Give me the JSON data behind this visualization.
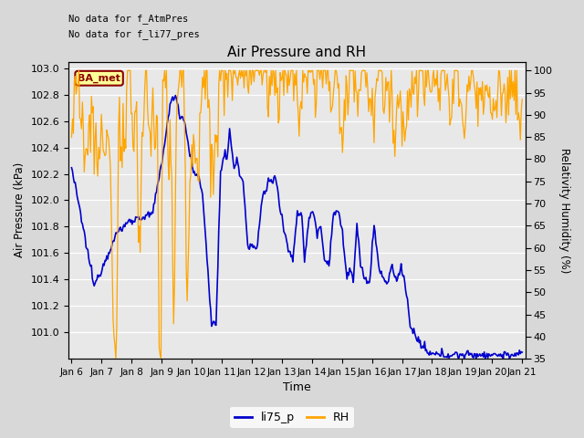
{
  "title": "Air Pressure and RH",
  "xlabel": "Time",
  "ylabel_left": "Air Pressure (kPa)",
  "ylabel_right": "Relativity Humidity (%)",
  "annotation_line1": "No data for f_AtmPres",
  "annotation_line2": "No data for f_li77_pres",
  "ba_met_label": "BA_met",
  "legend_labels": [
    "li75_p",
    "RH"
  ],
  "line_color_p": "#0000cc",
  "line_color_rh": "#ffa500",
  "ylim_left": [
    100.8,
    103.05
  ],
  "ylim_right": [
    35,
    102
  ],
  "yticks_left": [
    101.0,
    101.2,
    101.4,
    101.6,
    101.8,
    102.0,
    102.2,
    102.4,
    102.6,
    102.8,
    103.0
  ],
  "yticks_right": [
    35,
    40,
    45,
    50,
    55,
    60,
    65,
    70,
    75,
    80,
    85,
    90,
    95,
    100
  ],
  "xtick_labels": [
    "Jan 6",
    "Jan 7",
    "Jan 8",
    "Jan 9",
    "Jan 10",
    "Jan 11",
    "Jan 12",
    "Jan 13",
    "Jan 14",
    "Jan 15",
    "Jan 16",
    "Jan 17",
    "Jan 18",
    "Jan 19",
    "Jan 20",
    "Jan 21"
  ],
  "fig_facecolor": "#d8d8d8",
  "plot_facecolor": "#e8e8e8",
  "grid_color": "#ffffff",
  "n_points": 500
}
